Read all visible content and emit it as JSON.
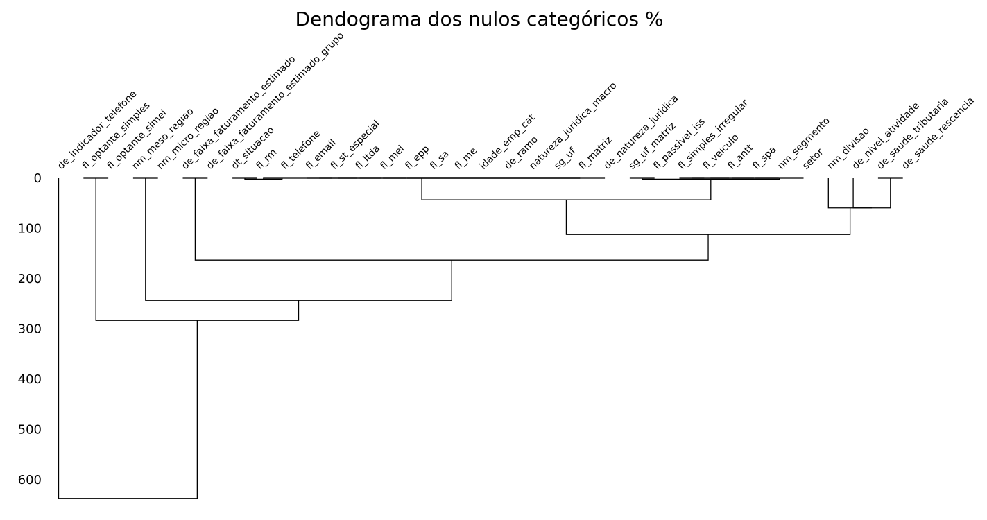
{
  "chart_data": {
    "type": "dendrogram",
    "title": "Dendograma dos nulos categóricos %",
    "orientation": "top",
    "ylim": [
      0,
      640
    ],
    "yticks": [
      0,
      100,
      200,
      300,
      400,
      500,
      600
    ],
    "leaves": [
      "de_indicador_telefone",
      "fl_optante_simples",
      "fl_optante_simei",
      "nm_meso_regiao",
      "nm_micro_regiao",
      "de_faixa_faturamento_estimado",
      "de_faixa_faturamento_estimado_grupo",
      "dt_situacao",
      "fl_rm",
      "fl_telefone",
      "fl_email",
      "fl_st_especial",
      "fl_ltda",
      "fl_mei",
      "fl_epp",
      "fl_sa",
      "fl_me",
      "idade_emp_cat",
      "de_ramo",
      "natureza_juridica_macro",
      "sg_uf",
      "fl_matriz",
      "de_natureza_juridica",
      "sg_uf_matriz",
      "fl_passivel_iss",
      "fl_simples_irregular",
      "fl_veiculo",
      "fl_antt",
      "fl_spa",
      "nm_segmento",
      "setor",
      "nm_divisao",
      "de_nivel_atividade",
      "de_saude_tributaria",
      "de_saude_rescencia"
    ],
    "merges": [
      {
        "id": "c1",
        "left": 1,
        "right": 2,
        "height": 0
      },
      {
        "id": "c2",
        "left": 3,
        "right": 4,
        "height": 0
      },
      {
        "id": "c3",
        "left": 5,
        "right": 6,
        "height": 0
      },
      {
        "id": "c4",
        "left": 7,
        "right": 8,
        "height": 0
      },
      {
        "id": "c5",
        "left": "c4",
        "right": 9,
        "height": 2
      },
      {
        "id": "c6",
        "left": 10,
        "right": 11,
        "height": 0
      },
      {
        "id": "c7",
        "left": "c6",
        "right": 12,
        "height": 0
      },
      {
        "id": "c8",
        "left": "c7",
        "right": 13,
        "height": 0
      },
      {
        "id": "c9",
        "left": "c8",
        "right": 14,
        "height": 0
      },
      {
        "id": "c10",
        "left": "c9",
        "right": 15,
        "height": 0
      },
      {
        "id": "c11",
        "left": "c10",
        "right": 16,
        "height": 0
      },
      {
        "id": "c12",
        "left": "c11",
        "right": 17,
        "height": 0
      },
      {
        "id": "c13",
        "left": "c12",
        "right": 18,
        "height": 0
      },
      {
        "id": "c14",
        "left": "c13",
        "right": 19,
        "height": 0
      },
      {
        "id": "c15",
        "left": "c14",
        "right": 20,
        "height": 0
      },
      {
        "id": "c16",
        "left": "c15",
        "right": 21,
        "height": 0
      },
      {
        "id": "c17",
        "left": "c16",
        "right": 22,
        "height": 0
      },
      {
        "id": "c18",
        "left": "c5",
        "right": "c17",
        "height": 0
      },
      {
        "id": "c19",
        "left": 23,
        "right": 24,
        "height": 0
      },
      {
        "id": "c20",
        "left": 25,
        "right": 26,
        "height": 0
      },
      {
        "id": "c21",
        "left": "c20",
        "right": 27,
        "height": 0
      },
      {
        "id": "c22",
        "left": "c21",
        "right": 28,
        "height": 0
      },
      {
        "id": "c23",
        "left": "c22",
        "right": 29,
        "height": 0
      },
      {
        "id": "c24",
        "left": "c23",
        "right": 30,
        "height": 0
      },
      {
        "id": "c25",
        "left": "c19",
        "right": "c24",
        "height": 2
      },
      {
        "id": "c26",
        "left": "c18",
        "right": "c25",
        "height": 43
      },
      {
        "id": "c27",
        "left": 33,
        "right": 34,
        "height": 0
      },
      {
        "id": "c28",
        "left": 32,
        "right": "c27",
        "height": 59
      },
      {
        "id": "c29",
        "left": 31,
        "right": "c28",
        "height": 59
      },
      {
        "id": "c30",
        "left": "c26",
        "right": "c29",
        "height": 112
      },
      {
        "id": "c31",
        "left": "c3",
        "right": "c30",
        "height": 163
      },
      {
        "id": "c32",
        "left": "c2",
        "right": "c31",
        "height": 243
      },
      {
        "id": "c33",
        "left": "c1",
        "right": "c32",
        "height": 283
      },
      {
        "id": "c34",
        "left": 0,
        "right": "c33",
        "height": 637
      }
    ]
  }
}
